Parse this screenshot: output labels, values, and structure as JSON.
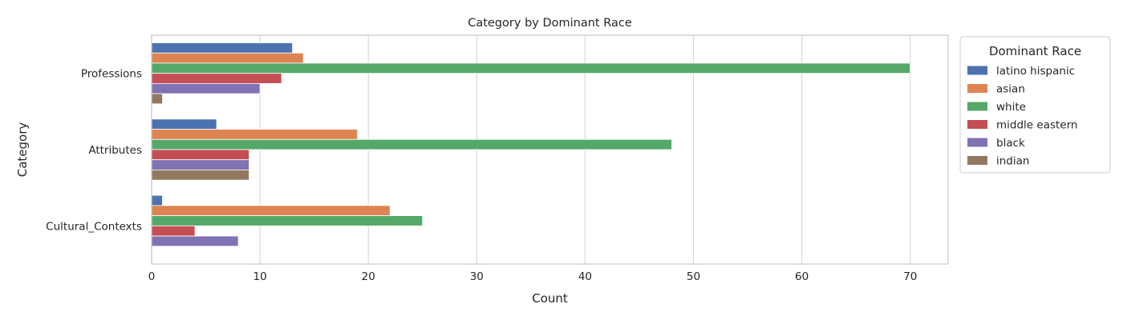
{
  "chart_data": {
    "type": "bar",
    "orientation": "horizontal",
    "title": "Category by Dominant Race",
    "xlabel": "Count",
    "ylabel": "Category",
    "xlim": [
      0,
      73.5
    ],
    "xticks": [
      0,
      10,
      20,
      30,
      40,
      50,
      60,
      70
    ],
    "grid": true,
    "legend_title": "Dominant Race",
    "legend_position": "outside-top-right",
    "categories": [
      "Professions",
      "Attributes",
      "Cultural_Contexts"
    ],
    "series": [
      {
        "name": "latino hispanic",
        "color": "#4c72b0",
        "values": [
          13,
          6,
          1
        ]
      },
      {
        "name": "asian",
        "color": "#dd8452",
        "values": [
          14,
          19,
          22
        ]
      },
      {
        "name": "white",
        "color": "#55a868",
        "values": [
          70,
          48,
          25
        ]
      },
      {
        "name": "middle eastern",
        "color": "#c44e52",
        "values": [
          12,
          9,
          4
        ]
      },
      {
        "name": "black",
        "color": "#8172b3",
        "values": [
          10,
          9,
          8
        ]
      },
      {
        "name": "indian",
        "color": "#937860",
        "values": [
          1,
          9,
          0
        ]
      }
    ]
  }
}
